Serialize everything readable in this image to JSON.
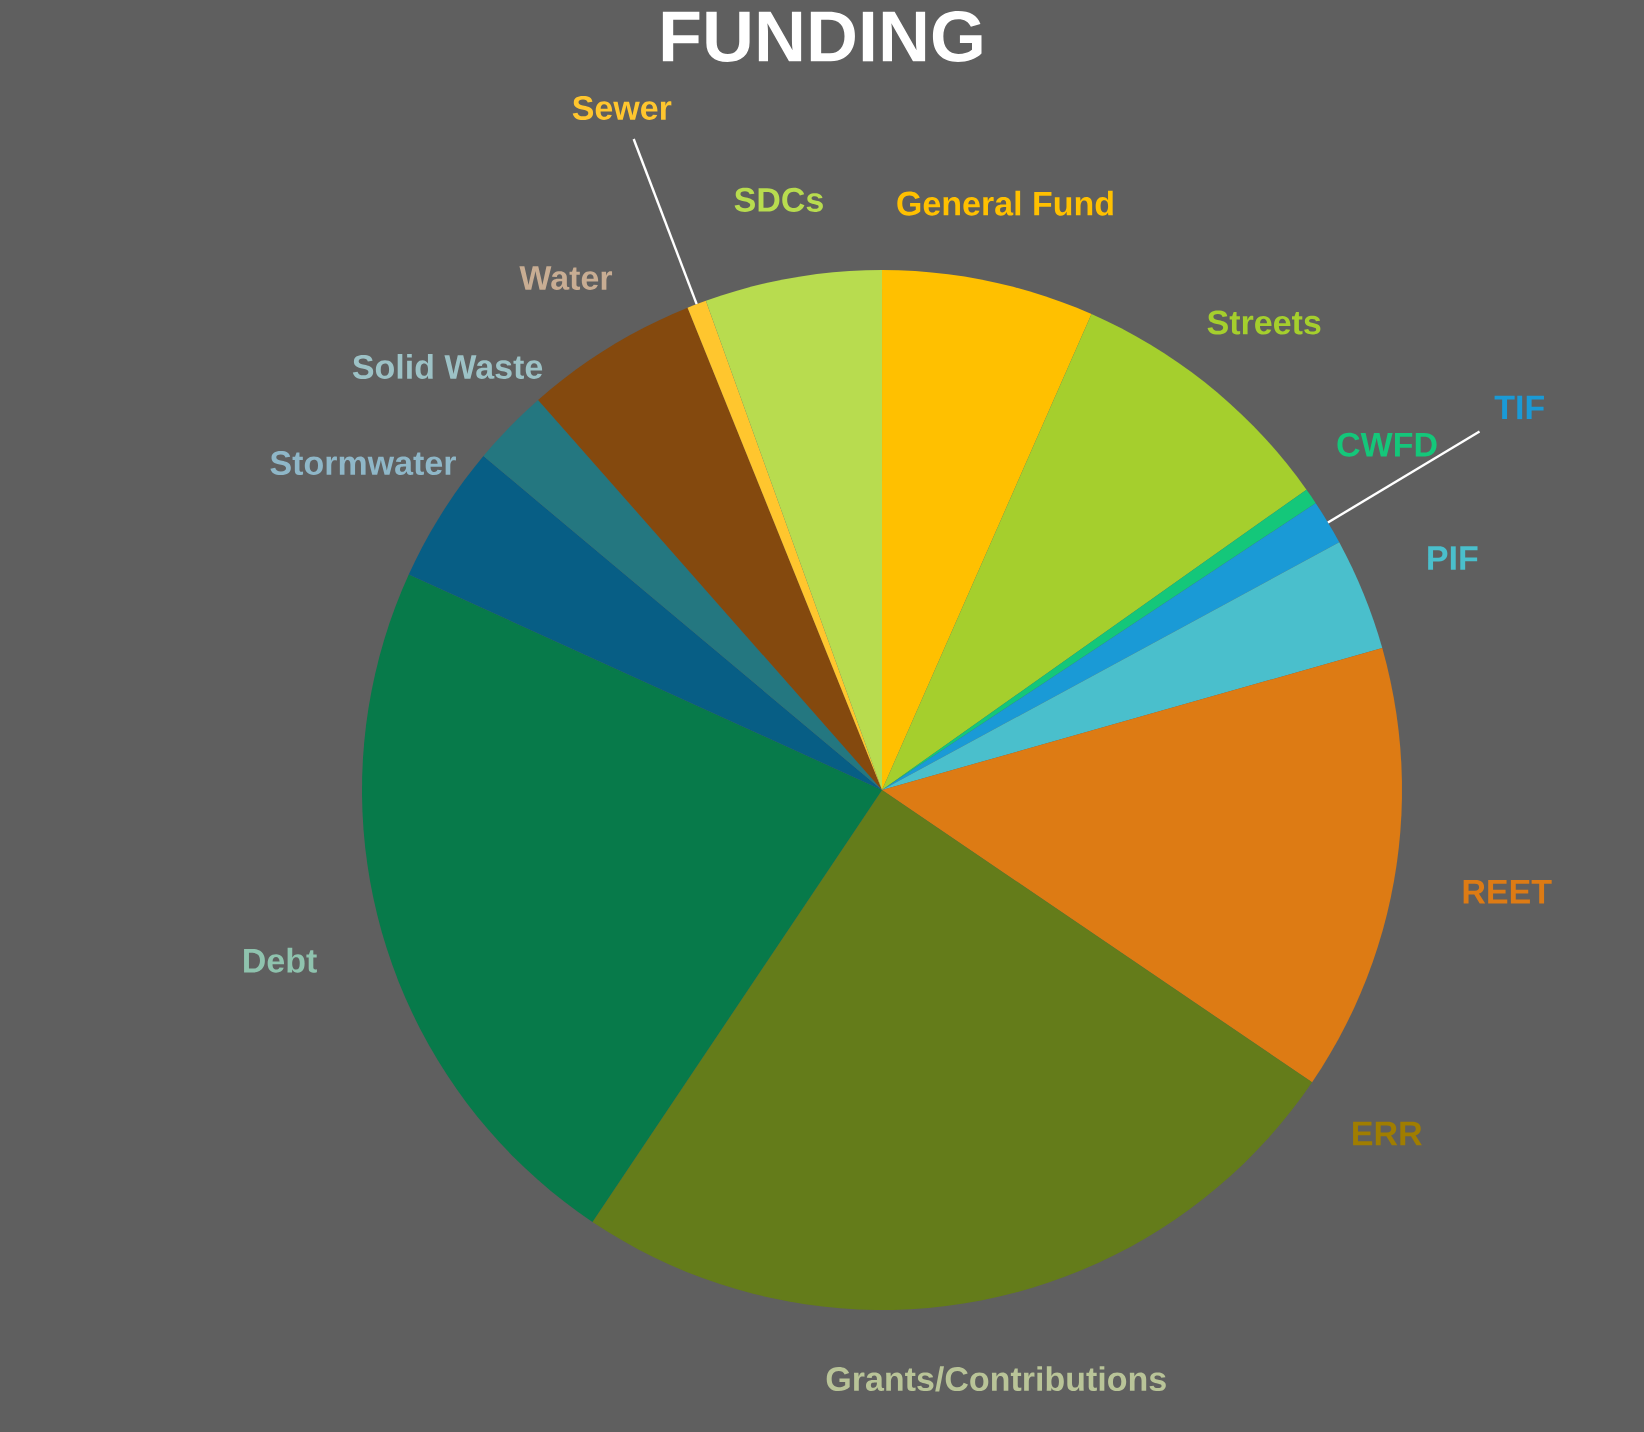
{
  "chart_data": {
    "type": "pie",
    "title": "FUNDING",
    "categories": [
      "General Fund",
      "Streets",
      "CWFD",
      "TIF",
      "PIF",
      "REET",
      "ERR",
      "Grants/Contributions",
      "Debt",
      "Stormwater",
      "Solid Waste",
      "Water",
      "Sewer",
      "SDCs"
    ],
    "values": [
      6.6,
      8.6,
      0.5,
      1.4,
      3.5,
      13.9,
      0,
      24.9,
      22.4,
      4.3,
      2.4,
      5.4,
      0.6,
      5.5
    ],
    "colors": [
      "#ffc000",
      "#a5cf2d",
      "#14c77a",
      "#1a9ad6",
      "#4abfcc",
      "#dd7b14",
      "#a07d00",
      "#647c1a",
      "#077a4a",
      "#075e85",
      "#247780",
      "#84490e",
      "#ffc62e",
      "#b8dc4f"
    ]
  }
}
